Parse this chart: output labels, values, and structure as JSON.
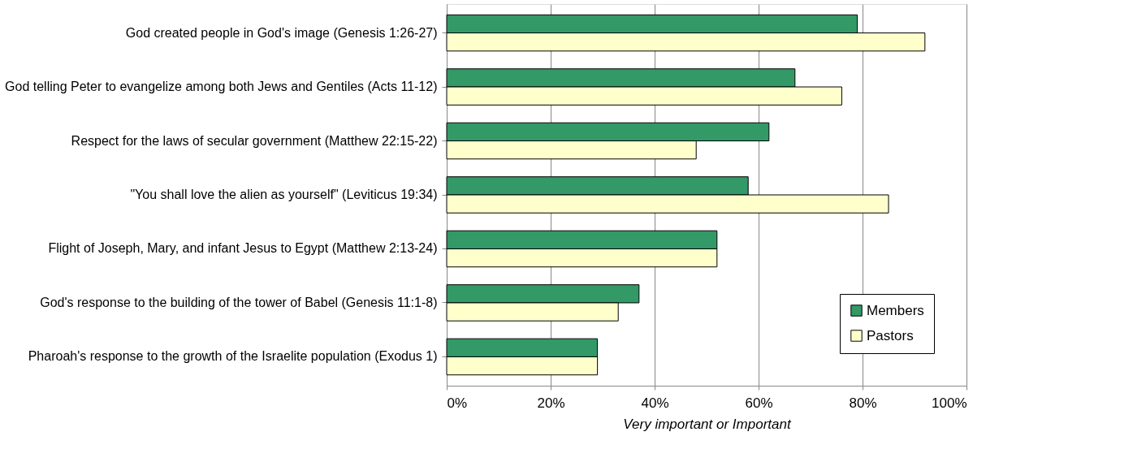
{
  "chart_data": {
    "type": "bar",
    "orientation": "horizontal",
    "categories": [
      "God created people in God's image (Genesis 1:26-27)",
      "God telling Peter to evangelize among both Jews and Gentiles (Acts 11-12)",
      "Respect for the laws of secular government (Matthew 22:15-22)",
      "\"You shall love the alien as yourself\" (Leviticus 19:34)",
      "Flight of Joseph, Mary, and infant Jesus to Egypt (Matthew 2:13-24)",
      "God's response to the building of the tower of Babel (Genesis 11:1-8)",
      "Pharoah's response to the growth of the Israelite population (Exodus 1)"
    ],
    "series": [
      {
        "name": "Members",
        "color": "#339966",
        "values": [
          79,
          67,
          62,
          58,
          52,
          37,
          29
        ]
      },
      {
        "name": "Pastors",
        "color": "#ffffcc",
        "values": [
          92,
          76,
          48,
          85,
          52,
          33,
          29
        ]
      }
    ],
    "xlim": [
      0,
      100
    ],
    "xticks": [
      {
        "value": 0,
        "label": "0%"
      },
      {
        "value": 20,
        "label": "20%"
      },
      {
        "value": 40,
        "label": "40%"
      },
      {
        "value": 60,
        "label": "60%"
      },
      {
        "value": 80,
        "label": "80%"
      },
      {
        "value": 100,
        "label": "100%"
      }
    ],
    "xlabel": "Very important or Important",
    "grid": "x",
    "legend": "bottom right"
  }
}
